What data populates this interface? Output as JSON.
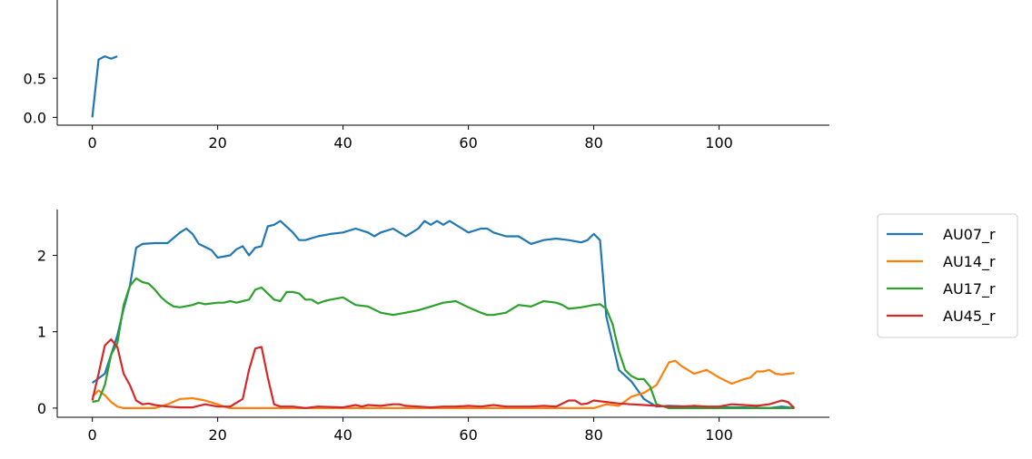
{
  "chart_data": [
    {
      "type": "line",
      "title": "",
      "xlabel": "",
      "ylabel": "",
      "xlim": [
        -5.6,
        117.6
      ],
      "ylim": [
        -0.1,
        1.5
      ],
      "xticks": [
        0,
        20,
        40,
        60,
        80,
        100
      ],
      "yticks": [
        0.0,
        0.5
      ],
      "ytick_labels": [
        "0.0",
        "0.5"
      ],
      "grid": false,
      "series": [
        {
          "color": "#1f77b4",
          "x": [
            0,
            1,
            2,
            3,
            4
          ],
          "y": [
            0.0,
            0.74,
            0.78,
            0.75,
            0.78
          ]
        }
      ]
    },
    {
      "type": "line",
      "title": "",
      "xlabel": "",
      "ylabel": "",
      "xlim": [
        -5.6,
        117.6
      ],
      "ylim": [
        -0.12,
        2.6
      ],
      "xticks": [
        0,
        20,
        40,
        60,
        80,
        100
      ],
      "yticks": [
        0,
        1,
        2
      ],
      "ytick_labels": [
        "0",
        "1",
        "2"
      ],
      "grid": false,
      "legend": "outside-right",
      "series": [
        {
          "name": "AU07_r",
          "color": "#1f77b4",
          "x": [
            0,
            2,
            4,
            5,
            6,
            7,
            8,
            10,
            12,
            14,
            15,
            16,
            17,
            19,
            20,
            22,
            23,
            24,
            25,
            26,
            27,
            28,
            29,
            30,
            32,
            33,
            34,
            36,
            38,
            40,
            42,
            44,
            45,
            46,
            48,
            50,
            51,
            52,
            53,
            54,
            55,
            56,
            57,
            58,
            60,
            62,
            63,
            64,
            66,
            68,
            70,
            72,
            74,
            76,
            78,
            79,
            80,
            81,
            82,
            84,
            86,
            88,
            90,
            92,
            96,
            100,
            104,
            108,
            110,
            112
          ],
          "y": [
            0.33,
            0.45,
            0.95,
            1.3,
            1.6,
            2.1,
            2.15,
            2.16,
            2.16,
            2.3,
            2.35,
            2.28,
            2.15,
            2.07,
            1.97,
            2.0,
            2.08,
            2.12,
            2.0,
            2.1,
            2.12,
            2.38,
            2.4,
            2.45,
            2.3,
            2.2,
            2.2,
            2.25,
            2.28,
            2.3,
            2.35,
            2.3,
            2.25,
            2.3,
            2.35,
            2.25,
            2.3,
            2.35,
            2.45,
            2.4,
            2.45,
            2.4,
            2.45,
            2.4,
            2.3,
            2.35,
            2.35,
            2.3,
            2.25,
            2.25,
            2.15,
            2.2,
            2.22,
            2.2,
            2.17,
            2.2,
            2.28,
            2.2,
            1.2,
            0.5,
            0.35,
            0.12,
            0.02,
            0.03,
            0.02,
            0.01,
            0.01,
            0.0,
            0.02,
            0.0
          ]
        },
        {
          "name": "AU14_r",
          "color": "#ff7f0e",
          "x": [
            0,
            1,
            2,
            3,
            4,
            5,
            6,
            8,
            10,
            12,
            14,
            16,
            18,
            20,
            21,
            22,
            24,
            26,
            30,
            40,
            50,
            60,
            70,
            80,
            82,
            84,
            86,
            88,
            90,
            92,
            93,
            94,
            96,
            98,
            100,
            102,
            104,
            105,
            106,
            107,
            108,
            109,
            110,
            111,
            112
          ],
          "y": [
            0.15,
            0.23,
            0.17,
            0.08,
            0.02,
            0.0,
            0.0,
            0.0,
            0.0,
            0.05,
            0.12,
            0.13,
            0.1,
            0.05,
            0.02,
            0.0,
            0.0,
            0.0,
            0.0,
            0.0,
            0.0,
            0.0,
            0.0,
            0.0,
            0.05,
            0.03,
            0.15,
            0.2,
            0.3,
            0.6,
            0.62,
            0.55,
            0.45,
            0.5,
            0.4,
            0.32,
            0.38,
            0.4,
            0.48,
            0.48,
            0.5,
            0.45,
            0.44,
            0.45,
            0.46
          ]
        },
        {
          "name": "AU17_r",
          "color": "#2ca02c",
          "x": [
            0,
            1,
            2,
            3,
            4,
            5,
            6,
            7,
            8,
            9,
            10,
            11,
            12,
            13,
            14,
            16,
            17,
            18,
            20,
            21,
            22,
            23,
            24,
            25,
            26,
            27,
            28,
            29,
            30,
            31,
            32,
            33,
            34,
            35,
            36,
            37,
            38,
            40,
            42,
            44,
            46,
            48,
            50,
            52,
            54,
            56,
            58,
            60,
            62,
            63,
            64,
            66,
            68,
            70,
            72,
            74,
            75,
            76,
            78,
            80,
            81,
            82,
            83,
            84,
            85,
            86,
            87,
            88,
            89,
            90,
            92,
            96,
            100,
            104,
            108,
            112
          ],
          "y": [
            0.08,
            0.1,
            0.3,
            0.7,
            0.85,
            1.35,
            1.6,
            1.7,
            1.65,
            1.63,
            1.55,
            1.45,
            1.38,
            1.33,
            1.32,
            1.35,
            1.38,
            1.36,
            1.38,
            1.38,
            1.4,
            1.38,
            1.4,
            1.42,
            1.55,
            1.58,
            1.5,
            1.42,
            1.4,
            1.52,
            1.52,
            1.5,
            1.42,
            1.42,
            1.37,
            1.4,
            1.42,
            1.45,
            1.35,
            1.33,
            1.25,
            1.22,
            1.25,
            1.28,
            1.33,
            1.38,
            1.4,
            1.32,
            1.25,
            1.22,
            1.22,
            1.25,
            1.35,
            1.33,
            1.4,
            1.38,
            1.35,
            1.3,
            1.32,
            1.35,
            1.36,
            1.3,
            1.1,
            0.75,
            0.5,
            0.42,
            0.38,
            0.38,
            0.28,
            0.05,
            0.0,
            0.0,
            0.0,
            0.0,
            0.0,
            0.0
          ]
        },
        {
          "name": "AU45_r",
          "color": "#d62728",
          "x": [
            0,
            1,
            2,
            3,
            4,
            5,
            6,
            7,
            8,
            9,
            10,
            11,
            12,
            14,
            16,
            18,
            20,
            22,
            24,
            25,
            26,
            27,
            28,
            29,
            30,
            32,
            34,
            36,
            40,
            42,
            43,
            44,
            46,
            48,
            49,
            50,
            52,
            54,
            56,
            58,
            60,
            62,
            64,
            66,
            68,
            70,
            72,
            74,
            76,
            77,
            78,
            79,
            80,
            82,
            84,
            86,
            88,
            90,
            92,
            94,
            96,
            98,
            100,
            102,
            104,
            106,
            108,
            110,
            111,
            112
          ],
          "y": [
            0.1,
            0.45,
            0.82,
            0.9,
            0.8,
            0.45,
            0.3,
            0.1,
            0.05,
            0.06,
            0.04,
            0.03,
            0.02,
            0.01,
            0.01,
            0.05,
            0.02,
            0.02,
            0.12,
            0.5,
            0.78,
            0.8,
            0.4,
            0.05,
            0.02,
            0.02,
            0.0,
            0.02,
            0.01,
            0.04,
            0.02,
            0.04,
            0.03,
            0.05,
            0.05,
            0.03,
            0.02,
            0.01,
            0.02,
            0.02,
            0.03,
            0.02,
            0.04,
            0.02,
            0.02,
            0.02,
            0.03,
            0.02,
            0.1,
            0.1,
            0.05,
            0.06,
            0.1,
            0.08,
            0.06,
            0.05,
            0.04,
            0.03,
            0.02,
            0.02,
            0.03,
            0.02,
            0.02,
            0.05,
            0.04,
            0.03,
            0.05,
            0.1,
            0.08,
            0.0
          ]
        }
      ]
    }
  ]
}
